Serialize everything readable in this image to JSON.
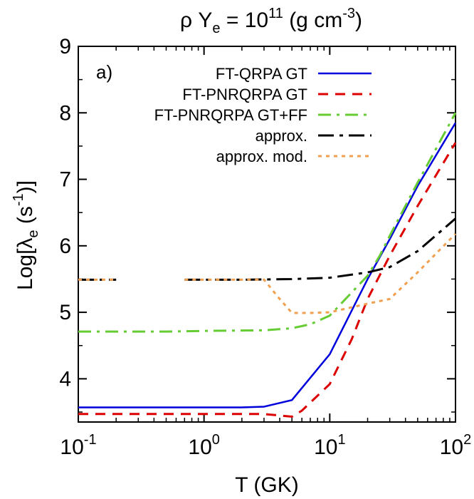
{
  "chart_data": {
    "type": "line",
    "title": {
      "prefix": "ρ Y",
      "sub": "e",
      "middle": " = 10",
      "sup": "11",
      "unit_open": " (g cm",
      "unit_sup": "-3",
      "unit_close": ")"
    },
    "panel_label": "a)",
    "xlabel": "T (GK)",
    "ylabel": {
      "prefix": "Log[λ",
      "sub": "e",
      "middle": " (s",
      "sup": "-1",
      "close": ")]"
    },
    "xscale": "log",
    "xlim": [
      0.1,
      100
    ],
    "ylim": [
      3.35,
      9
    ],
    "x_ticks": [
      {
        "base": "10",
        "exp": "-1",
        "value": 0.1
      },
      {
        "base": "10",
        "exp": "0",
        "value": 1
      },
      {
        "base": "10",
        "exp": "1",
        "value": 10
      },
      {
        "base": "10",
        "exp": "2",
        "value": 100
      }
    ],
    "y_ticks": [
      4,
      5,
      6,
      7,
      8,
      9
    ],
    "legend_position": "top-right",
    "series": [
      {
        "name": "FT-QRPA GT",
        "color": "#0000dd",
        "dash": "solid",
        "x": [
          0.1,
          0.5,
          1,
          2,
          3,
          5,
          10,
          20,
          30,
          50,
          100
        ],
        "y": [
          3.57,
          3.57,
          3.57,
          3.57,
          3.58,
          3.68,
          4.37,
          5.5,
          6.1,
          6.9,
          7.85
        ]
      },
      {
        "name": "FT-PNRQRPA GT",
        "color": "#dd0000",
        "dash": "dash",
        "x": [
          0.1,
          0.5,
          1,
          2,
          3,
          5,
          6,
          10,
          15,
          20,
          30,
          50,
          100
        ],
        "y": [
          3.47,
          3.47,
          3.47,
          3.47,
          3.47,
          3.43,
          3.52,
          3.92,
          4.6,
          5.2,
          5.85,
          6.6,
          7.55
        ]
      },
      {
        "name": "FT-PNRQRPA GT+FF",
        "color": "#66cc33",
        "dash": "dashdot",
        "x": [
          0.1,
          0.3,
          0.5,
          1,
          3,
          5,
          7,
          10,
          20,
          25,
          30,
          50,
          100
        ],
        "y": [
          4.71,
          4.71,
          4.71,
          4.72,
          4.73,
          4.76,
          4.82,
          4.95,
          5.55,
          5.85,
          6.15,
          6.95,
          8.0
        ]
      },
      {
        "name": "approx.",
        "color": "#000000",
        "dash": "longdashdot",
        "segments": [
          {
            "x": [
              0.1,
              0.2
            ],
            "y": [
              5.49,
              5.49
            ]
          },
          {
            "x": [
              0.7,
              1,
              2,
              5,
              10,
              20,
              30,
              50,
              100
            ],
            "y": [
              5.49,
              5.49,
              5.49,
              5.5,
              5.52,
              5.6,
              5.68,
              5.92,
              6.41
            ]
          }
        ]
      },
      {
        "name": "approx. mod.",
        "color": "#f0a050",
        "dash": "dot",
        "segments": [
          {
            "x": [
              0.1,
              0.2
            ],
            "y": [
              5.49,
              5.49
            ]
          },
          {
            "x": [
              0.7,
              1,
              2,
              3,
              4,
              5,
              7,
              10,
              20,
              30,
              50,
              100
            ],
            "y": [
              5.49,
              5.49,
              5.49,
              5.49,
              5.2,
              4.99,
              4.99,
              5.0,
              5.13,
              5.2,
              5.6,
              6.18
            ]
          }
        ]
      }
    ]
  }
}
